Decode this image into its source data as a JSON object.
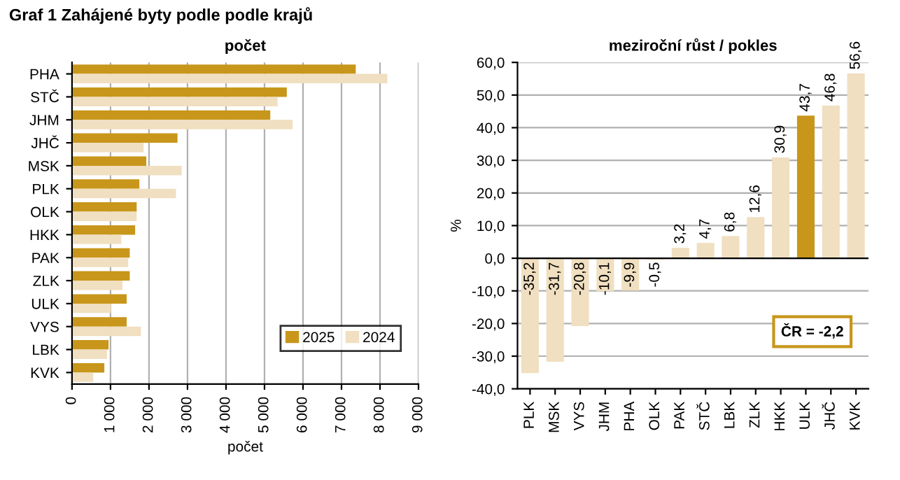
{
  "chart_data": [
    {
      "type": "bar",
      "orientation": "horizontal",
      "title": "Graf 1 Zahájené byty podle podle krajů",
      "subtitle": "počet",
      "xlabel": "počet",
      "categories": [
        "PHA",
        "STČ",
        "JHM",
        "JHČ",
        "MSK",
        "PLK",
        "OLK",
        "HKK",
        "PAK",
        "ZLK",
        "ULK",
        "VYS",
        "LBK",
        "KVK"
      ],
      "series": [
        {
          "name": "2025",
          "color": "#c8961a",
          "values": [
            7370,
            5580,
            5150,
            2740,
            1930,
            1750,
            1680,
            1640,
            1500,
            1500,
            1420,
            1420,
            950,
            840
          ]
        },
        {
          "name": "2024",
          "color": "#f0dfc0",
          "values": [
            8190,
            5340,
            5730,
            1860,
            2850,
            2700,
            1680,
            1280,
            1460,
            1310,
            1010,
            1790,
            910,
            550
          ]
        }
      ],
      "xlim": [
        0,
        9000
      ],
      "xticks": [
        {
          "value": 0,
          "label": "0"
        },
        {
          "value": 1000,
          "label": "1 000"
        },
        {
          "value": 2000,
          "label": "2 000"
        },
        {
          "value": 3000,
          "label": "3 000"
        },
        {
          "value": 4000,
          "label": "4 000"
        },
        {
          "value": 5000,
          "label": "5 000"
        },
        {
          "value": 6000,
          "label": "6 000"
        },
        {
          "value": 7000,
          "label": "7 000"
        },
        {
          "value": 8000,
          "label": "8 000"
        },
        {
          "value": 9000,
          "label": "9 000"
        }
      ],
      "grid": "x",
      "legend": "bottom right"
    },
    {
      "type": "bar",
      "title": "meziroční růst / pokles",
      "ylabel": "%",
      "categories": [
        "PLK",
        "MSK",
        "VYS",
        "JHM",
        "PHA",
        "OLK",
        "PAK",
        "STČ",
        "LBK",
        "ZLK",
        "HKK",
        "ULK",
        "JHČ",
        "KVK"
      ],
      "values": [
        -35.2,
        -31.7,
        -20.8,
        -10.1,
        -9.9,
        -0.5,
        3.2,
        4.7,
        6.8,
        12.6,
        30.9,
        43.7,
        46.8,
        56.6
      ],
      "value_labels": [
        "-35,2",
        "-31,7",
        "-20,8",
        "-10,1",
        "-9,9",
        "-0,5",
        "3,2",
        "4,7",
        "6,8",
        "12,6",
        "30,9",
        "43,7",
        "46,8",
        "56,6"
      ],
      "colors": [
        "#f0dfc0",
        "#f0dfc0",
        "#f0dfc0",
        "#f0dfc0",
        "#f0dfc0",
        "#f0dfc0",
        "#f0dfc0",
        "#f0dfc0",
        "#f0dfc0",
        "#f0dfc0",
        "#f0dfc0",
        "#c8961a",
        "#f0dfc0",
        "#f0dfc0"
      ],
      "ylim": [
        -40,
        60
      ],
      "yticks": [
        {
          "value": -40,
          "label": "-40,0"
        },
        {
          "value": -30,
          "label": "-30,0"
        },
        {
          "value": -20,
          "label": "-20,0"
        },
        {
          "value": -10,
          "label": "-10,0"
        },
        {
          "value": 0,
          "label": "0,0"
        },
        {
          "value": 10,
          "label": "10,0"
        },
        {
          "value": 20,
          "label": "20,0"
        },
        {
          "value": 30,
          "label": "30,0"
        },
        {
          "value": 40,
          "label": "40,0"
        },
        {
          "value": 50,
          "label": "50,0"
        },
        {
          "value": 60,
          "label": "60,0"
        }
      ],
      "grid": "y",
      "annotations": [
        "ČR = -2,2"
      ]
    }
  ]
}
